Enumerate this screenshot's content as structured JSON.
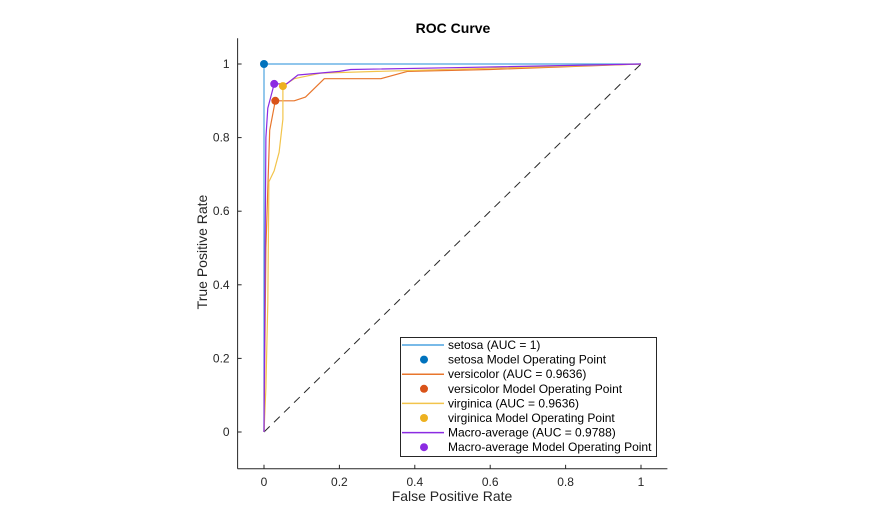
{
  "chart_data": {
    "type": "line",
    "title": "ROC Curve",
    "xlabel": "False Positive Rate",
    "ylabel": "True Positive Rate",
    "xlim": [
      -0.07,
      1.07
    ],
    "ylim": [
      -0.1,
      1.07
    ],
    "xticks": [
      0,
      0.2,
      0.4,
      0.6,
      0.8,
      1
    ],
    "xtick_labels": [
      "0",
      "0.2",
      "0.4",
      "0.6",
      "0.8",
      "1"
    ],
    "yticks": [
      0,
      0.2,
      0.4,
      0.6,
      0.8,
      1
    ],
    "ytick_labels": [
      "0",
      "0.2",
      "0.4",
      "0.6",
      "0.8",
      "1"
    ],
    "grid": false,
    "legend_position": "bottom-right",
    "reference_line": {
      "x": [
        0,
        1
      ],
      "y": [
        0,
        1
      ],
      "style": "dashed",
      "color": "#262626"
    },
    "series": [
      {
        "name": "setosa (AUC = 1)",
        "color": "#0072BD",
        "x": [
          0,
          0,
          1
        ],
        "y": [
          0,
          1,
          1
        ],
        "operating_point": {
          "label": "setosa Model Operating Point",
          "x": 0,
          "y": 1,
          "color": "#0072BD"
        }
      },
      {
        "name": "versicolor (AUC = 0.9636)",
        "color": "#D95319",
        "x": [
          0,
          0.005,
          0.015,
          0.03,
          0.08,
          0.11,
          0.16,
          0.31,
          0.38,
          0.6,
          1
        ],
        "y": [
          0,
          0.5,
          0.82,
          0.9,
          0.9,
          0.91,
          0.96,
          0.96,
          0.98,
          0.985,
          1
        ],
        "operating_point": {
          "label": "versicolor Model Operating Point",
          "x": 0.03,
          "y": 0.9,
          "color": "#D95319"
        }
      },
      {
        "name": "virginica (AUC = 0.9636)",
        "color": "#EDB120",
        "x": [
          0,
          0.005,
          0.01,
          0.013,
          0.027,
          0.04,
          0.05,
          0.05,
          0.08,
          0.15,
          0.3,
          1
        ],
        "y": [
          0,
          0.12,
          0.35,
          0.68,
          0.71,
          0.76,
          0.85,
          0.94,
          0.96,
          0.975,
          0.98,
          1
        ],
        "operating_point": {
          "label": "virginica Model Operating Point",
          "x": 0.05,
          "y": 0.94,
          "color": "#EDB120"
        }
      },
      {
        "name": "Macro-average (AUC = 0.9788)",
        "color": "#7E2F8E",
        "line_color": "#8B2BE2",
        "x": [
          0,
          0.003,
          0.005,
          0.01,
          0.027,
          0.06,
          0.09,
          0.2,
          0.23,
          0.5,
          1
        ],
        "y": [
          0,
          0.5,
          0.8,
          0.88,
          0.946,
          0.946,
          0.97,
          0.98,
          0.985,
          0.99,
          1
        ],
        "operating_point": {
          "label": "Macro-average Model Operating Point",
          "x": 0.027,
          "y": 0.946,
          "color": "#8B2BE2"
        }
      }
    ]
  }
}
